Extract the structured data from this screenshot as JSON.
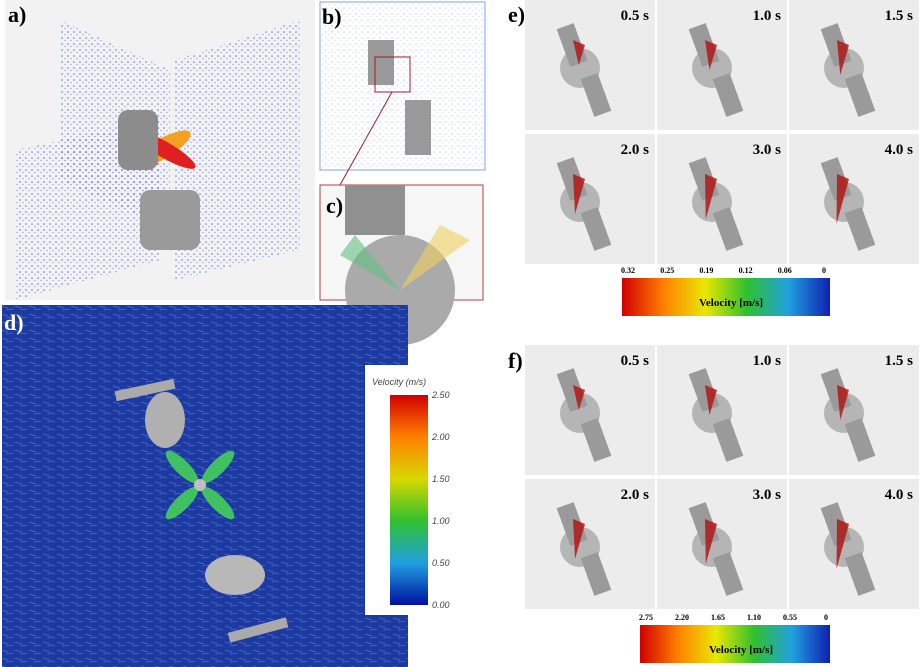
{
  "panels": {
    "a": {
      "label": "a)"
    },
    "b": {
      "label": "b)"
    },
    "c": {
      "label": "c)"
    },
    "d": {
      "label": "d)",
      "colorbar": {
        "title": "Velocity (m/s)",
        "ticks": [
          "2.50",
          "2.00",
          "1.50",
          "1.00",
          "0.50",
          "0.00"
        ]
      }
    },
    "e": {
      "label": "e)",
      "times": [
        "0.5 s",
        "1.0 s",
        "1.5 s",
        "2.0 s",
        "3.0 s",
        "4.0 s"
      ],
      "colorbar": {
        "title": "Velocity [m/s]",
        "ticks": [
          "0.32",
          "0.25",
          "0.19",
          "0.12",
          "0.06",
          "0"
        ]
      }
    },
    "f": {
      "label": "f)",
      "times": [
        "0.5 s",
        "1.0 s",
        "1.5 s",
        "2.0 s",
        "3.0 s",
        "4.0 s"
      ],
      "colorbar": {
        "title": "Velocity [m/s]",
        "ticks": [
          "2.75",
          "2.20",
          "1.65",
          "1.10",
          "0.55",
          "0"
        ]
      }
    }
  }
}
